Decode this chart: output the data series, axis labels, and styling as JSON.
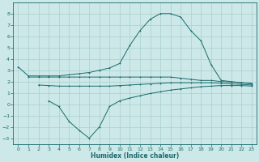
{
  "xlabel": "Humidex (Indice chaleur)",
  "background_color": "#cce8e8",
  "grid_color": "#aacfcf",
  "line_color": "#1a6b6b",
  "xlim": [
    -0.5,
    23.5
  ],
  "ylim": [
    -3.5,
    9.0
  ],
  "yticks": [
    -3,
    -2,
    -1,
    0,
    1,
    2,
    3,
    4,
    5,
    6,
    7,
    8
  ],
  "xticks": [
    0,
    1,
    2,
    3,
    4,
    5,
    6,
    7,
    8,
    9,
    10,
    11,
    12,
    13,
    14,
    15,
    16,
    17,
    18,
    19,
    20,
    21,
    22,
    23
  ],
  "curve1_x": [
    0,
    1,
    2,
    3,
    4,
    5,
    6,
    7,
    8,
    9,
    10,
    11,
    12,
    13,
    14,
    15,
    16,
    17,
    18,
    19,
    20,
    21,
    22,
    23
  ],
  "curve1_y": [
    3.3,
    2.5,
    2.5,
    2.5,
    2.5,
    2.6,
    2.7,
    2.8,
    3.0,
    3.2,
    3.6,
    5.2,
    6.5,
    7.5,
    8.0,
    8.0,
    7.7,
    6.5,
    5.6,
    3.5,
    2.1,
    2.0,
    1.9,
    1.8
  ],
  "curve2_x": [
    1,
    2,
    3,
    4,
    5,
    6,
    7,
    8,
    9,
    10,
    11,
    12,
    13,
    14,
    15,
    16,
    17,
    18,
    19,
    20,
    21,
    22,
    23
  ],
  "curve2_y": [
    2.4,
    2.4,
    2.4,
    2.4,
    2.4,
    2.4,
    2.4,
    2.4,
    2.4,
    2.4,
    2.4,
    2.4,
    2.4,
    2.4,
    2.4,
    2.3,
    2.2,
    2.1,
    2.1,
    2.0,
    1.95,
    1.9,
    1.85
  ],
  "curve3_x": [
    2,
    3,
    4,
    5,
    6,
    7,
    8,
    9,
    10,
    11,
    12,
    13,
    14,
    15,
    16,
    17,
    18,
    19,
    20,
    21,
    22,
    23
  ],
  "curve3_y": [
    1.7,
    1.65,
    1.6,
    1.6,
    1.6,
    1.6,
    1.6,
    1.6,
    1.65,
    1.7,
    1.75,
    1.8,
    1.85,
    1.9,
    1.9,
    1.9,
    1.9,
    1.9,
    1.85,
    1.8,
    1.75,
    1.7
  ],
  "curve4_x": [
    3,
    4,
    5,
    6,
    7,
    8,
    9,
    10,
    11,
    12,
    13,
    14,
    15,
    16,
    17,
    18,
    19,
    20,
    21,
    22,
    23
  ],
  "curve4_y": [
    0.3,
    -0.2,
    -1.5,
    -2.3,
    -3.0,
    -2.0,
    -0.2,
    0.3,
    0.55,
    0.75,
    0.95,
    1.1,
    1.25,
    1.35,
    1.45,
    1.55,
    1.6,
    1.65,
    1.65,
    1.65,
    1.6
  ]
}
